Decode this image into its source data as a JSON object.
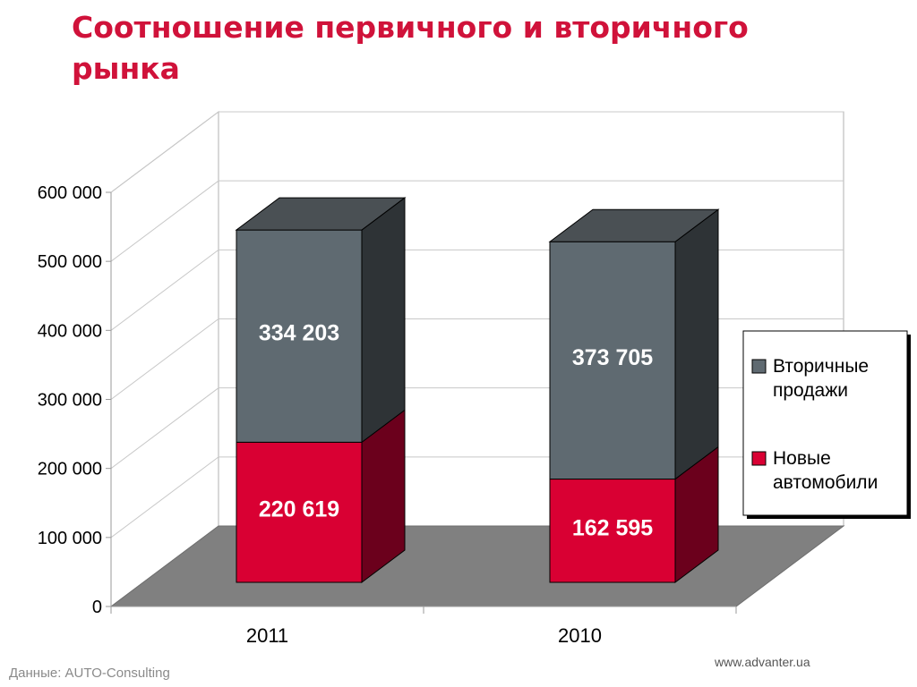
{
  "header": {
    "title": "Соотношение первичного и вторичного рынка"
  },
  "chart_data": {
    "type": "bar",
    "stacked": true,
    "three_d": true,
    "categories": [
      "2011",
      "2010"
    ],
    "series": [
      {
        "name": "Новые автомобили",
        "values": [
          220619,
          162595
        ],
        "labels": [
          "220 619",
          "162 595"
        ],
        "color": "#d90033",
        "side_color": "#6b001c"
      },
      {
        "name": "Вторичные продажи",
        "values": [
          334203,
          373705
        ],
        "labels": [
          "334 203",
          "373 705"
        ],
        "color": "#5f6a71",
        "side_color": "#2e3336"
      }
    ],
    "yticks": [
      {
        "value": 0,
        "label": "0"
      },
      {
        "value": 100000,
        "label": "100 000"
      },
      {
        "value": 200000,
        "label": "200 000"
      },
      {
        "value": 300000,
        "label": "300 000"
      },
      {
        "value": 400000,
        "label": "400 000"
      },
      {
        "value": 500000,
        "label": "500 000"
      },
      {
        "value": 600000,
        "label": "600 000"
      }
    ],
    "ylim": [
      0,
      600000
    ],
    "grid": true,
    "legend": {
      "position": "right",
      "items": [
        {
          "line1": "Вторичные",
          "line2": "продажи",
          "color": "#5f6a71"
        },
        {
          "line1": "Новые",
          "line2": "автомобили",
          "color": "#d90033"
        }
      ]
    },
    "floor_color": "#808080"
  },
  "footer": {
    "source": "Данные: AUTO-Consulting",
    "site": "www.advanter.ua"
  }
}
